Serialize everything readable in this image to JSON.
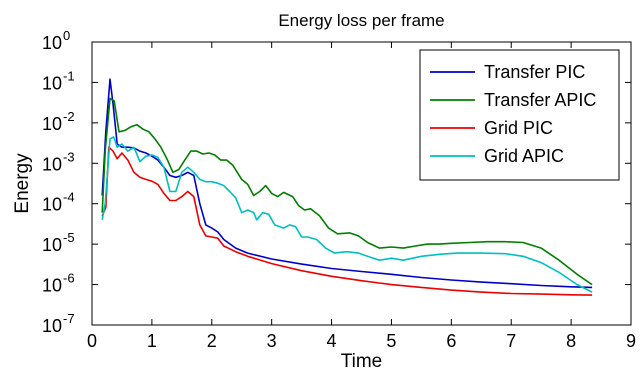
{
  "chart_data": {
    "type": "line",
    "title": "Energy loss per frame",
    "xlabel": "Time",
    "ylabel": "Energy",
    "xlim": [
      0,
      9
    ],
    "ylim": [
      1e-07,
      1
    ],
    "yscale": "log",
    "grid": false,
    "legend_position": "top-right",
    "x_ticks": [
      "0",
      "1",
      "2",
      "3",
      "4",
      "5",
      "6",
      "7",
      "8",
      "9"
    ],
    "y_ticks": [
      {
        "base": "10",
        "exp": "0",
        "value": 1
      },
      {
        "base": "10",
        "exp": "-1",
        "value": 0.1
      },
      {
        "base": "10",
        "exp": "-2",
        "value": 0.01
      },
      {
        "base": "10",
        "exp": "-3",
        "value": 0.001
      },
      {
        "base": "10",
        "exp": "-4",
        "value": 0.0001
      },
      {
        "base": "10",
        "exp": "-5",
        "value": 1e-05
      },
      {
        "base": "10",
        "exp": "-6",
        "value": 1e-06
      },
      {
        "base": "10",
        "exp": "-7",
        "value": 1e-07
      }
    ],
    "series": [
      {
        "name": "Transfer PIC",
        "color": "#0000cc",
        "points": [
          [
            0.17,
            0.00016
          ],
          [
            0.23,
            0.006
          ],
          [
            0.3,
            0.12
          ],
          [
            0.35,
            0.03
          ],
          [
            0.42,
            0.003
          ],
          [
            0.5,
            0.0025
          ],
          [
            0.6,
            0.0025
          ],
          [
            0.7,
            0.0024
          ],
          [
            0.8,
            0.002
          ],
          [
            0.9,
            0.0018
          ],
          [
            1.0,
            0.0015
          ],
          [
            1.1,
            0.0012
          ],
          [
            1.2,
            0.0008
          ],
          [
            1.3,
            0.0005
          ],
          [
            1.4,
            0.00045
          ],
          [
            1.5,
            0.0005
          ],
          [
            1.6,
            0.0006
          ],
          [
            1.7,
            0.0005
          ],
          [
            1.8,
            0.0001
          ],
          [
            1.9,
            3e-05
          ],
          [
            2.0,
            2.5e-05
          ],
          [
            2.1,
            2e-05
          ],
          [
            2.2,
            1.3e-05
          ],
          [
            2.4,
            8e-06
          ],
          [
            2.6,
            6e-06
          ],
          [
            3.0,
            4.3e-06
          ],
          [
            3.5,
            3.2e-06
          ],
          [
            4.0,
            2.5e-06
          ],
          [
            4.5,
            2.1e-06
          ],
          [
            5.0,
            1.8e-06
          ],
          [
            5.5,
            1.5e-06
          ],
          [
            6.0,
            1.3e-06
          ],
          [
            6.5,
            1.15e-06
          ],
          [
            7.0,
            1.05e-06
          ],
          [
            7.5,
            9.5e-07
          ],
          [
            8.0,
            8.8e-07
          ],
          [
            8.35,
            8.5e-07
          ]
        ]
      },
      {
        "name": "Transfer APIC",
        "color": "#007f00",
        "points": [
          [
            0.17,
            6e-05
          ],
          [
            0.22,
            0.002
          ],
          [
            0.3,
            0.04
          ],
          [
            0.37,
            0.035
          ],
          [
            0.45,
            0.006
          ],
          [
            0.55,
            0.0065
          ],
          [
            0.65,
            0.008
          ],
          [
            0.75,
            0.009
          ],
          [
            0.85,
            0.007
          ],
          [
            0.95,
            0.006
          ],
          [
            1.05,
            0.004
          ],
          [
            1.15,
            0.0025
          ],
          [
            1.25,
            0.0013
          ],
          [
            1.35,
            0.0006
          ],
          [
            1.45,
            0.0007
          ],
          [
            1.55,
            0.0012
          ],
          [
            1.65,
            0.002
          ],
          [
            1.75,
            0.002
          ],
          [
            1.85,
            0.0017
          ],
          [
            1.95,
            0.0018
          ],
          [
            2.05,
            0.0016
          ],
          [
            2.15,
            0.0012
          ],
          [
            2.25,
            0.0012
          ],
          [
            2.35,
            0.0009
          ],
          [
            2.5,
            0.0004
          ],
          [
            2.6,
            0.0003
          ],
          [
            2.7,
            0.00016
          ],
          [
            2.8,
            0.0002
          ],
          [
            2.9,
            0.00028
          ],
          [
            3.0,
            0.00018
          ],
          [
            3.1,
            0.00015
          ],
          [
            3.2,
            0.00019
          ],
          [
            3.35,
            0.00015
          ],
          [
            3.45,
            9e-05
          ],
          [
            3.55,
            7e-05
          ],
          [
            3.65,
            7.5e-05
          ],
          [
            3.8,
            5e-05
          ],
          [
            3.95,
            2.5e-05
          ],
          [
            4.1,
            1.8e-05
          ],
          [
            4.3,
            1.9e-05
          ],
          [
            4.45,
            1.6e-05
          ],
          [
            4.6,
            1.1e-05
          ],
          [
            4.8,
            8e-06
          ],
          [
            5.0,
            8.5e-06
          ],
          [
            5.2,
            8e-06
          ],
          [
            5.4,
            9e-06
          ],
          [
            5.6,
            1e-05
          ],
          [
            5.8,
            1e-05
          ],
          [
            6.0,
            1.05e-05
          ],
          [
            6.3,
            1.1e-05
          ],
          [
            6.6,
            1.15e-05
          ],
          [
            6.9,
            1.15e-05
          ],
          [
            7.2,
            1.1e-05
          ],
          [
            7.5,
            8e-06
          ],
          [
            7.8,
            4e-06
          ],
          [
            8.1,
            1.8e-06
          ],
          [
            8.35,
            1e-06
          ]
        ]
      },
      {
        "name": "Grid PIC",
        "color": "#ee0000",
        "points": [
          [
            0.17,
            5e-05
          ],
          [
            0.23,
            8e-05
          ],
          [
            0.28,
            0.0025
          ],
          [
            0.35,
            0.002
          ],
          [
            0.42,
            0.0013
          ],
          [
            0.5,
            0.0018
          ],
          [
            0.6,
            0.0012
          ],
          [
            0.7,
            0.0006
          ],
          [
            0.8,
            0.00045
          ],
          [
            0.9,
            0.0004
          ],
          [
            1.0,
            0.00036
          ],
          [
            1.1,
            0.0003
          ],
          [
            1.2,
            0.00018
          ],
          [
            1.3,
            0.00012
          ],
          [
            1.4,
            0.00012
          ],
          [
            1.5,
            0.00015
          ],
          [
            1.6,
            0.0002
          ],
          [
            1.7,
            0.00015
          ],
          [
            1.8,
            3e-05
          ],
          [
            1.9,
            1.6e-05
          ],
          [
            2.0,
            1.5e-05
          ],
          [
            2.1,
            1.4e-05
          ],
          [
            2.2,
            9e-06
          ],
          [
            2.4,
            6.5e-06
          ],
          [
            2.6,
            5e-06
          ],
          [
            3.0,
            3.3e-06
          ],
          [
            3.5,
            2.2e-06
          ],
          [
            4.0,
            1.6e-06
          ],
          [
            4.5,
            1.25e-06
          ],
          [
            5.0,
            1e-06
          ],
          [
            5.5,
            8.5e-07
          ],
          [
            6.0,
            7.3e-07
          ],
          [
            6.5,
            6.5e-07
          ],
          [
            7.0,
            6e-07
          ],
          [
            7.5,
            5.8e-07
          ],
          [
            8.0,
            5.6e-07
          ],
          [
            8.35,
            5.5e-07
          ]
        ]
      },
      {
        "name": "Grid APIC",
        "color": "#00bfbf",
        "points": [
          [
            0.17,
            4e-05
          ],
          [
            0.22,
            0.0001
          ],
          [
            0.3,
            0.004
          ],
          [
            0.36,
            0.0045
          ],
          [
            0.42,
            0.0025
          ],
          [
            0.5,
            0.003
          ],
          [
            0.6,
            0.002
          ],
          [
            0.7,
            0.0025
          ],
          [
            0.8,
            0.0011
          ],
          [
            0.9,
            0.0015
          ],
          [
            1.0,
            0.0016
          ],
          [
            1.1,
            0.0014
          ],
          [
            1.2,
            0.0008
          ],
          [
            1.3,
            0.0002
          ],
          [
            1.4,
            0.0002
          ],
          [
            1.5,
            0.0006
          ],
          [
            1.6,
            0.0008
          ],
          [
            1.7,
            0.0006
          ],
          [
            1.8,
            0.0004
          ],
          [
            1.9,
            0.00035
          ],
          [
            2.0,
            0.00035
          ],
          [
            2.1,
            0.00032
          ],
          [
            2.2,
            0.00028
          ],
          [
            2.3,
            0.0002
          ],
          [
            2.4,
            0.00014
          ],
          [
            2.5,
            6e-05
          ],
          [
            2.6,
            7e-05
          ],
          [
            2.7,
            6e-05
          ],
          [
            2.75,
            4e-05
          ],
          [
            2.85,
            6e-05
          ],
          [
            2.95,
            5.5e-05
          ],
          [
            3.05,
            3e-05
          ],
          [
            3.2,
            2.5e-05
          ],
          [
            3.3,
            3e-05
          ],
          [
            3.4,
            2.7e-05
          ],
          [
            3.5,
            1.5e-05
          ],
          [
            3.6,
            1.5e-05
          ],
          [
            3.75,
            1.3e-05
          ],
          [
            3.9,
            8e-06
          ],
          [
            4.05,
            6e-06
          ],
          [
            4.25,
            6.5e-06
          ],
          [
            4.45,
            6e-06
          ],
          [
            4.6,
            5e-06
          ],
          [
            4.8,
            4e-06
          ],
          [
            5.0,
            4.5e-06
          ],
          [
            5.2,
            4e-06
          ],
          [
            5.5,
            5e-06
          ],
          [
            5.8,
            5.6e-06
          ],
          [
            6.1,
            6e-06
          ],
          [
            6.5,
            6e-06
          ],
          [
            6.9,
            5.8e-06
          ],
          [
            7.2,
            5e-06
          ],
          [
            7.5,
            3.5e-06
          ],
          [
            7.8,
            2e-06
          ],
          [
            8.1,
            1e-06
          ],
          [
            8.35,
            6.5e-07
          ]
        ]
      }
    ]
  }
}
